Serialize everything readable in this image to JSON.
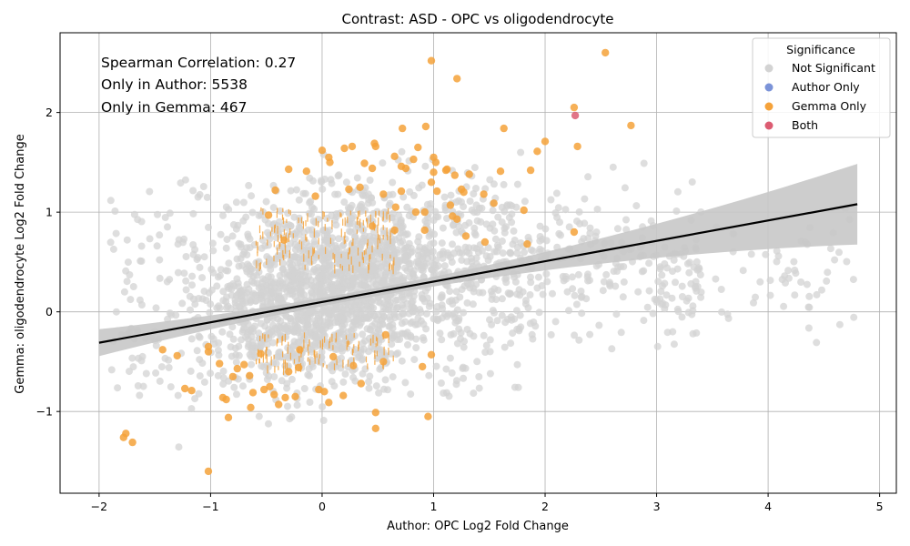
{
  "chart_data": {
    "type": "scatter",
    "title": "Contrast: ASD - OPC vs oligodendrocyte",
    "xlabel": "Author: OPC Log2 Fold Change",
    "ylabel": "Gemma: oligodendrocyte Log2 Fold Change",
    "xlim": [
      -2.35,
      5.15
    ],
    "ylim": [
      -1.82,
      2.8
    ],
    "xticks": [
      -2,
      -1,
      0,
      1,
      2,
      3,
      4,
      5
    ],
    "yticks": [
      -1,
      0,
      1,
      2
    ],
    "xtick_labels": [
      "−2",
      "−1",
      "0",
      "1",
      "2",
      "3",
      "4",
      "5"
    ],
    "ytick_labels": [
      "−1",
      "0",
      "1",
      "2"
    ],
    "grid": true,
    "legend": {
      "title": "Significance",
      "placement": "top-right",
      "entries": [
        "Not Significant",
        "Author Only",
        "Gemma Only",
        "Both"
      ]
    },
    "annotations": [
      "Spearman Correlation: 0.27",
      "Only in Author: 5538",
      "Only in Gemma: 467"
    ],
    "regression": {
      "x": [
        -2.0,
        4.8
      ],
      "y": [
        -0.31,
        1.08
      ]
    },
    "colors": {
      "not_significant": "#d3d3d3",
      "author_only": "#7b93d8",
      "gemma_only": "#f5a23a",
      "both": "#dc5c72",
      "regression": "#000000",
      "ci_band": "#c8c8c8"
    },
    "series": [
      {
        "name": "Gemma Only",
        "points": [
          [
            0.98,
            2.52
          ],
          [
            1.21,
            2.34
          ],
          [
            2.54,
            2.6
          ],
          [
            2.26,
            2.05
          ],
          [
            2.29,
            1.66
          ],
          [
            2.77,
            1.87
          ],
          [
            0.72,
            1.84
          ],
          [
            0.93,
            1.86
          ],
          [
            1.63,
            1.84
          ],
          [
            2.0,
            1.71
          ],
          [
            1.93,
            1.61
          ],
          [
            0.47,
            1.69
          ],
          [
            0.86,
            1.65
          ],
          [
            0.48,
            1.66
          ],
          [
            0.27,
            1.66
          ],
          [
            0.2,
            1.64
          ],
          [
            0.0,
            1.62
          ],
          [
            0.06,
            1.55
          ],
          [
            0.07,
            1.5
          ],
          [
            0.38,
            1.49
          ],
          [
            0.65,
            1.56
          ],
          [
            1.0,
            1.55
          ],
          [
            1.02,
            1.5
          ],
          [
            0.82,
            1.53
          ],
          [
            0.45,
            1.44
          ],
          [
            0.71,
            1.46
          ],
          [
            0.75,
            1.44
          ],
          [
            1.11,
            1.42
          ],
          [
            1.12,
            1.43
          ],
          [
            1.32,
            1.38
          ],
          [
            1.19,
            1.37
          ],
          [
            1.6,
            1.41
          ],
          [
            1.87,
            1.42
          ],
          [
            1.0,
            1.4
          ],
          [
            0.98,
            1.3
          ],
          [
            -0.3,
            1.43
          ],
          [
            -0.14,
            1.41
          ],
          [
            -0.42,
            1.22
          ],
          [
            -0.06,
            1.16
          ],
          [
            0.24,
            1.23
          ],
          [
            0.34,
            1.25
          ],
          [
            0.55,
            1.18
          ],
          [
            0.71,
            1.21
          ],
          [
            1.03,
            1.21
          ],
          [
            1.25,
            1.23
          ],
          [
            1.27,
            1.2
          ],
          [
            1.45,
            1.18
          ],
          [
            1.54,
            1.09
          ],
          [
            1.81,
            1.02
          ],
          [
            1.15,
            1.07
          ],
          [
            1.17,
            0.96
          ],
          [
            1.21,
            0.93
          ],
          [
            0.66,
            1.05
          ],
          [
            0.84,
            1.0
          ],
          [
            0.92,
            1.0
          ],
          [
            -0.48,
            0.97
          ],
          [
            -0.34,
            0.72
          ],
          [
            0.45,
            0.86
          ],
          [
            0.65,
            0.82
          ],
          [
            0.92,
            0.82
          ],
          [
            1.29,
            0.76
          ],
          [
            1.46,
            0.7
          ],
          [
            1.84,
            0.68
          ],
          [
            2.26,
            0.8
          ],
          [
            0.57,
            -0.23
          ],
          [
            0.98,
            -0.43
          ],
          [
            -1.43,
            -0.38
          ],
          [
            -1.3,
            -0.44
          ],
          [
            -1.23,
            -0.77
          ],
          [
            -1.17,
            -0.79
          ],
          [
            -1.02,
            -0.35
          ],
          [
            -1.02,
            -0.4
          ],
          [
            -0.92,
            -0.52
          ],
          [
            -0.89,
            -0.86
          ],
          [
            -0.86,
            -0.88
          ],
          [
            -0.84,
            -1.06
          ],
          [
            -0.76,
            -0.57
          ],
          [
            -0.7,
            -0.53
          ],
          [
            -0.65,
            -0.64
          ],
          [
            -0.64,
            -0.96
          ],
          [
            -0.62,
            -0.81
          ],
          [
            -0.52,
            -0.78
          ],
          [
            -0.47,
            -0.75
          ],
          [
            -0.43,
            -0.83
          ],
          [
            -0.39,
            -0.93
          ],
          [
            -0.33,
            -0.86
          ],
          [
            -0.24,
            -0.85
          ],
          [
            -0.21,
            -0.56
          ],
          [
            -0.03,
            -0.78
          ],
          [
            0.02,
            -0.8
          ],
          [
            0.06,
            -0.91
          ],
          [
            0.19,
            -0.84
          ],
          [
            0.28,
            -0.54
          ],
          [
            0.35,
            -0.72
          ],
          [
            0.48,
            -1.01
          ],
          [
            0.48,
            -1.17
          ],
          [
            0.95,
            -1.05
          ],
          [
            -1.76,
            -1.22
          ],
          [
            -1.78,
            -1.26
          ],
          [
            -1.7,
            -1.31
          ],
          [
            -1.02,
            -1.6
          ],
          [
            -0.8,
            -0.65
          ],
          [
            -0.3,
            -0.6
          ],
          [
            0.1,
            -0.45
          ],
          [
            -0.55,
            -0.42
          ],
          [
            -0.2,
            -0.38
          ],
          [
            0.55,
            -0.5
          ],
          [
            0.9,
            -0.55
          ]
        ]
      },
      {
        "name": "Both",
        "points": [
          [
            2.27,
            1.97
          ]
        ]
      }
    ]
  }
}
